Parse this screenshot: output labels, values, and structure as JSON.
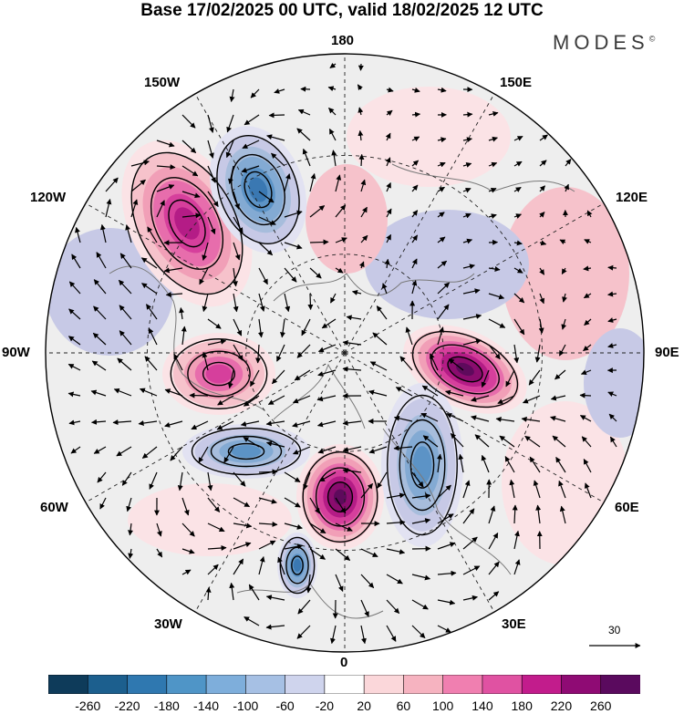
{
  "title": "Base 17/02/2025 00 UTC, valid 18/02/2025 12 UTC",
  "brand": {
    "text": "MODES",
    "mark": "©"
  },
  "map": {
    "projection": "north-polar-stereographic",
    "longitude_labels": {
      "top": "180",
      "bottom": "0",
      "left": "90W",
      "right": "90E",
      "top_left_1": "150W",
      "top_left_2": "120W",
      "bottom_left_1": "60W",
      "bottom_left_2": "30W",
      "top_right_1": "150E",
      "top_right_2": "120E",
      "bottom_right_1": "60E",
      "bottom_right_2": "30E"
    },
    "reference_vector": {
      "label": "30"
    },
    "colors": {
      "background_field": "#eeeeee",
      "positive": [
        "#fbe3e6",
        "#f6c2cb",
        "#f19fb7",
        "#e76dac",
        "#d63f9c",
        "#b41c86",
        "#8a0c6e",
        "#5e0a5c"
      ],
      "negative": [
        "#e2e2f2",
        "#c7c9e6",
        "#a7bddc",
        "#83aad3",
        "#5c93c6",
        "#3a78b2",
        "#1f5c91",
        "#0f3f63"
      ],
      "coast": "#7a7a7a",
      "grid": "#222222"
    },
    "anomaly_cells": [
      {
        "name": "alaska-ridge",
        "sign": "positive",
        "level": 5
      },
      {
        "name": "aleutian-low",
        "sign": "negative",
        "level": 5
      },
      {
        "name": "canada-ridge",
        "sign": "positive",
        "level": 4
      },
      {
        "name": "norwegian-ridge",
        "sign": "positive",
        "level": 7
      },
      {
        "name": "siberian-ridge",
        "sign": "positive",
        "level": 7
      },
      {
        "name": "scandinavian-low",
        "sign": "negative",
        "level": 4
      },
      {
        "name": "atlantic-low",
        "sign": "negative",
        "level": 5
      },
      {
        "name": "labrador-low",
        "sign": "negative",
        "level": 4
      }
    ]
  },
  "colorbar": {
    "ticks": [
      "-260",
      "-220",
      "-180",
      "-140",
      "-100",
      "-60",
      "-20",
      "20",
      "60",
      "100",
      "140",
      "180",
      "220",
      "260"
    ],
    "colors": [
      "#0e3b5a",
      "#1c5f8e",
      "#2f78b0",
      "#4f95c7",
      "#7eaedb",
      "#a6c0e4",
      "#cfd4ed",
      "#ffffff",
      "#fbd7da",
      "#f6b3c0",
      "#f07fb0",
      "#e052a2",
      "#c21c8c",
      "#8f0b74",
      "#5a0a5e"
    ]
  }
}
